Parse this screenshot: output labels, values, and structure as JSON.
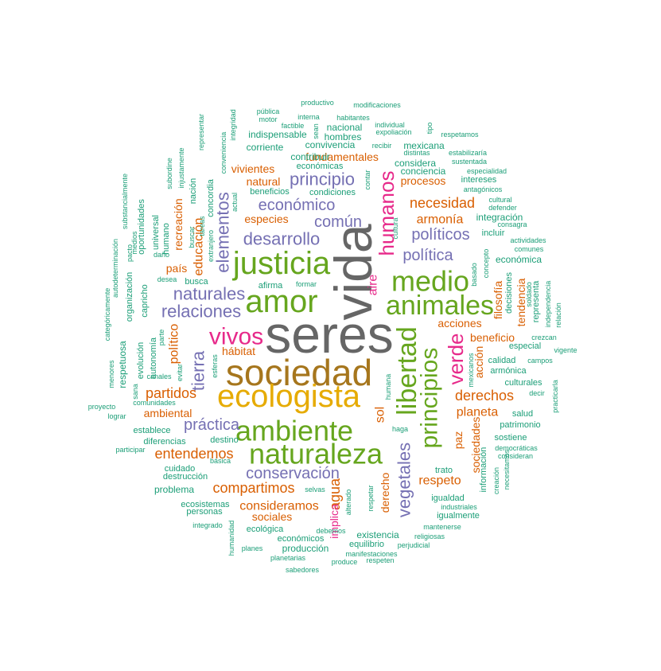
{
  "colors": {
    "green": "#1B9E77",
    "orange": "#D95F02",
    "purple": "#7570B3",
    "magenta": "#E7298A",
    "olive": "#66A61E",
    "gold": "#E6AB02",
    "brown": "#A6761D",
    "gray": "#666666"
  },
  "words": [
    {
      "text": "seres",
      "color": "gray"
    },
    {
      "text": "vida",
      "color": "gray"
    },
    {
      "text": "sociedad",
      "color": "brown"
    },
    {
      "text": "ecologista",
      "color": "gold"
    },
    {
      "text": "justicia",
      "color": "olive"
    },
    {
      "text": "amor",
      "color": "olive"
    },
    {
      "text": "naturaleza",
      "color": "olive"
    },
    {
      "text": "ambiente",
      "color": "olive"
    },
    {
      "text": "medio",
      "color": "olive"
    },
    {
      "text": "animales",
      "color": "olive"
    },
    {
      "text": "libertad",
      "color": "olive"
    },
    {
      "text": "principios",
      "color": "olive"
    },
    {
      "text": "humanos",
      "color": "magenta"
    },
    {
      "text": "vivos",
      "color": "magenta"
    },
    {
      "text": "verde",
      "color": "magenta"
    },
    {
      "text": "vegetales",
      "color": "purple"
    },
    {
      "text": "elementos",
      "color": "purple"
    },
    {
      "text": "desarrollo",
      "color": "purple"
    },
    {
      "text": "naturales",
      "color": "purple"
    },
    {
      "text": "relaciones",
      "color": "purple"
    },
    {
      "text": "económico",
      "color": "purple"
    },
    {
      "text": "principio",
      "color": "purple"
    },
    {
      "text": "común",
      "color": "purple"
    },
    {
      "text": "políticos",
      "color": "purple"
    },
    {
      "text": "política",
      "color": "purple"
    },
    {
      "text": "tierra",
      "color": "purple"
    },
    {
      "text": "práctica",
      "color": "purple"
    },
    {
      "text": "conservación",
      "color": "purple"
    },
    {
      "text": "necesidad",
      "color": "orange"
    },
    {
      "text": "armonía",
      "color": "orange"
    },
    {
      "text": "partidos",
      "color": "orange"
    },
    {
      "text": "derechos",
      "color": "orange"
    },
    {
      "text": "planeta",
      "color": "orange"
    },
    {
      "text": "entendemos",
      "color": "orange"
    },
    {
      "text": "compartimos",
      "color": "orange"
    },
    {
      "text": "consideramos",
      "color": "orange"
    },
    {
      "text": "respeto",
      "color": "orange"
    },
    {
      "text": "agua",
      "color": "orange"
    },
    {
      "text": "sol",
      "color": "orange"
    },
    {
      "text": "aire",
      "color": "magenta"
    },
    {
      "text": "paz",
      "color": "orange"
    },
    {
      "text": "político",
      "color": "orange"
    },
    {
      "text": "educación",
      "color": "orange"
    },
    {
      "text": "hábitat",
      "color": "orange"
    },
    {
      "text": "acciones",
      "color": "orange"
    },
    {
      "text": "acción",
      "color": "orange"
    },
    {
      "text": "beneficio",
      "color": "orange"
    },
    {
      "text": "filosofía",
      "color": "orange"
    },
    {
      "text": "tendencia",
      "color": "orange"
    },
    {
      "text": "sociedades",
      "color": "orange"
    },
    {
      "text": "implica",
      "color": "magenta"
    },
    {
      "text": "derecho",
      "color": "orange"
    },
    {
      "text": "sociales",
      "color": "orange"
    },
    {
      "text": "ambiental",
      "color": "orange"
    },
    {
      "text": "procesos",
      "color": "orange"
    },
    {
      "text": "natural",
      "color": "orange"
    },
    {
      "text": "especies",
      "color": "orange"
    },
    {
      "text": "vivientes",
      "color": "orange"
    },
    {
      "text": "fundamentales",
      "color": "orange"
    },
    {
      "text": "recreación",
      "color": "orange"
    },
    {
      "text": "país",
      "color": "orange"
    },
    {
      "text": "contribuir",
      "color": "green"
    },
    {
      "text": "indispensable",
      "color": "green"
    },
    {
      "text": "corriente",
      "color": "green"
    },
    {
      "text": "convivencia",
      "color": "green"
    },
    {
      "text": "nacional",
      "color": "green"
    },
    {
      "text": "hombres",
      "color": "green"
    },
    {
      "text": "mexicana",
      "color": "green"
    },
    {
      "text": "considera",
      "color": "green"
    },
    {
      "text": "conciencia",
      "color": "green"
    },
    {
      "text": "económicas",
      "color": "green"
    },
    {
      "text": "beneficios",
      "color": "green"
    },
    {
      "text": "condiciones",
      "color": "green"
    },
    {
      "text": "intereses",
      "color": "green"
    },
    {
      "text": "integración",
      "color": "green"
    },
    {
      "text": "incluir",
      "color": "green"
    },
    {
      "text": "económica",
      "color": "green"
    },
    {
      "text": "afirma",
      "color": "green"
    },
    {
      "text": "busca",
      "color": "green"
    },
    {
      "text": "decisiones",
      "color": "green"
    },
    {
      "text": "representa",
      "color": "green"
    },
    {
      "text": "especial",
      "color": "green"
    },
    {
      "text": "calidad",
      "color": "green"
    },
    {
      "text": "armónica",
      "color": "green"
    },
    {
      "text": "culturales",
      "color": "green"
    },
    {
      "text": "salud",
      "color": "green"
    },
    {
      "text": "patrimonio",
      "color": "green"
    },
    {
      "text": "sostiene",
      "color": "green"
    },
    {
      "text": "información",
      "color": "green"
    },
    {
      "text": "igualdad",
      "color": "green"
    },
    {
      "text": "igualmente",
      "color": "green"
    },
    {
      "text": "existencia",
      "color": "green"
    },
    {
      "text": "equilibrio",
      "color": "green"
    },
    {
      "text": "producción",
      "color": "green"
    },
    {
      "text": "económicos",
      "color": "green"
    },
    {
      "text": "ecológica",
      "color": "green"
    },
    {
      "text": "ecosistemas",
      "color": "green"
    },
    {
      "text": "personas",
      "color": "green"
    },
    {
      "text": "problema",
      "color": "green"
    },
    {
      "text": "destrucción",
      "color": "green"
    },
    {
      "text": "cuidado",
      "color": "green"
    },
    {
      "text": "destino",
      "color": "green"
    },
    {
      "text": "diferencias",
      "color": "green"
    },
    {
      "text": "establece",
      "color": "green"
    },
    {
      "text": "respetuosa",
      "color": "green"
    },
    {
      "text": "evolución",
      "color": "green"
    },
    {
      "text": "autonomía",
      "color": "green"
    },
    {
      "text": "capricho",
      "color": "green"
    },
    {
      "text": "organización",
      "color": "green"
    },
    {
      "text": "oportunidades",
      "color": "green"
    },
    {
      "text": "universal",
      "color": "green"
    },
    {
      "text": "humano",
      "color": "green"
    },
    {
      "text": "nación",
      "color": "green"
    },
    {
      "text": "concordia",
      "color": "green"
    },
    {
      "text": "productivo",
      "color": "green"
    },
    {
      "text": "modificaciones",
      "color": "green"
    },
    {
      "text": "pública",
      "color": "green"
    },
    {
      "text": "motor",
      "color": "green"
    },
    {
      "text": "interna",
      "color": "green"
    },
    {
      "text": "habitantes",
      "color": "green"
    },
    {
      "text": "factible",
      "color": "green"
    },
    {
      "text": "individual",
      "color": "green"
    },
    {
      "text": "expoliación",
      "color": "green"
    },
    {
      "text": "respetamos",
      "color": "green"
    },
    {
      "text": "recibir",
      "color": "green"
    },
    {
      "text": "distintas",
      "color": "green"
    },
    {
      "text": "estabilizaría",
      "color": "green"
    },
    {
      "text": "sustentada",
      "color": "green"
    },
    {
      "text": "especialidad",
      "color": "green"
    },
    {
      "text": "antagónicos",
      "color": "green"
    },
    {
      "text": "cultural",
      "color": "green"
    },
    {
      "text": "defender",
      "color": "green"
    },
    {
      "text": "consagra",
      "color": "green"
    },
    {
      "text": "actividades",
      "color": "green"
    },
    {
      "text": "comunes",
      "color": "green"
    },
    {
      "text": "crezcan",
      "color": "green"
    },
    {
      "text": "vigente",
      "color": "green"
    },
    {
      "text": "campos",
      "color": "green"
    },
    {
      "text": "decir",
      "color": "green"
    },
    {
      "text": "democráticas",
      "color": "green"
    },
    {
      "text": "consideran",
      "color": "green"
    },
    {
      "text": "industriales",
      "color": "green"
    },
    {
      "text": "mantenerse",
      "color": "green"
    },
    {
      "text": "religiosas",
      "color": "green"
    },
    {
      "text": "perjudicial",
      "color": "green"
    },
    {
      "text": "manifestaciones",
      "color": "green"
    },
    {
      "text": "produce",
      "color": "green"
    },
    {
      "text": "respeten",
      "color": "green"
    },
    {
      "text": "sabedores",
      "color": "green"
    },
    {
      "text": "planetarias",
      "color": "green"
    },
    {
      "text": "planes",
      "color": "green"
    },
    {
      "text": "integrado",
      "color": "green"
    },
    {
      "text": "debemos",
      "color": "green"
    },
    {
      "text": "selvas",
      "color": "green"
    },
    {
      "text": "básica",
      "color": "green"
    },
    {
      "text": "participar",
      "color": "green"
    },
    {
      "text": "lograr",
      "color": "green"
    },
    {
      "text": "proyecto",
      "color": "green"
    },
    {
      "text": "comunidades",
      "color": "green"
    },
    {
      "text": "canales",
      "color": "green"
    },
    {
      "text": "sana",
      "color": "green"
    },
    {
      "text": "evitar",
      "color": "green"
    },
    {
      "text": "desea",
      "color": "green"
    },
    {
      "text": "daño",
      "color": "green"
    },
    {
      "text": "formar",
      "color": "green"
    },
    {
      "text": "trato",
      "color": "green"
    },
    {
      "text": "haga",
      "color": "green"
    },
    {
      "text": "humana",
      "color": "green"
    },
    {
      "text": "cultura",
      "color": "green"
    },
    {
      "text": "contar",
      "color": "green"
    },
    {
      "text": "basado",
      "color": "green"
    },
    {
      "text": "concepto",
      "color": "green"
    },
    {
      "text": "menores",
      "color": "green"
    },
    {
      "text": "categóricamente",
      "color": "green"
    },
    {
      "text": "autodeterminación",
      "color": "green"
    },
    {
      "text": "substancialmente",
      "color": "green"
    },
    {
      "text": "medios",
      "color": "green"
    },
    {
      "text": "pacto",
      "color": "green"
    },
    {
      "text": "subordine",
      "color": "green"
    },
    {
      "text": "injustamente",
      "color": "green"
    },
    {
      "text": "representar",
      "color": "green"
    },
    {
      "text": "conveniencia",
      "color": "green"
    },
    {
      "text": "integridad",
      "color": "green"
    },
    {
      "text": "buscar",
      "color": "green"
    },
    {
      "text": "tareas",
      "color": "green"
    },
    {
      "text": "extranjero",
      "color": "green"
    },
    {
      "text": "actual",
      "color": "green"
    },
    {
      "text": "sean",
      "color": "green"
    },
    {
      "text": "tipo",
      "color": "green"
    },
    {
      "text": "parte",
      "color": "green"
    },
    {
      "text": "esferas",
      "color": "green"
    },
    {
      "text": "respetar",
      "color": "green"
    },
    {
      "text": "alterado",
      "color": "green"
    },
    {
      "text": "humanidad",
      "color": "green"
    },
    {
      "text": "mexicanos",
      "color": "green"
    },
    {
      "text": "creación",
      "color": "green"
    },
    {
      "text": "necesitamos",
      "color": "green"
    },
    {
      "text": "soldado",
      "color": "green"
    },
    {
      "text": "independencia",
      "color": "green"
    },
    {
      "text": "relación",
      "color": "green"
    },
    {
      "text": "practicarla",
      "color": "green"
    }
  ]
}
